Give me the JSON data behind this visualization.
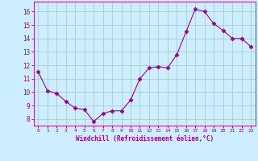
{
  "x": [
    0,
    1,
    2,
    3,
    4,
    5,
    6,
    7,
    8,
    9,
    10,
    11,
    12,
    13,
    14,
    15,
    16,
    17,
    18,
    19,
    20,
    21,
    22,
    23
  ],
  "y": [
    11.5,
    10.1,
    9.9,
    9.3,
    8.8,
    8.7,
    7.8,
    8.4,
    8.6,
    8.6,
    9.4,
    11.0,
    11.8,
    11.9,
    11.8,
    12.8,
    14.5,
    16.2,
    16.0,
    15.1,
    14.6,
    14.0,
    14.0,
    13.4
  ],
  "line_color": "#990099",
  "marker": "D",
  "marker_size": 2.5,
  "bg_color": "#cceeff",
  "grid_color": "#aacccc",
  "xlabel": "Windchill (Refroidissement éolien,°C)",
  "xlabel_color": "#990099",
  "tick_color": "#990099",
  "ylim": [
    7.5,
    16.75
  ],
  "yticks": [
    8,
    9,
    10,
    11,
    12,
    13,
    14,
    15,
    16
  ],
  "xlim": [
    -0.5,
    23.5
  ],
  "xticks": [
    0,
    1,
    2,
    3,
    4,
    5,
    6,
    7,
    8,
    9,
    10,
    11,
    12,
    13,
    14,
    15,
    16,
    17,
    18,
    19,
    20,
    21,
    22,
    23
  ],
  "xtick_labels": [
    "0",
    "1",
    "2",
    "3",
    "4",
    "5",
    "6",
    "7",
    "8",
    "9",
    "10",
    "11",
    "12",
    "13",
    "14",
    "15",
    "16",
    "17",
    "18",
    "19",
    "20",
    "21",
    "22",
    "23"
  ]
}
